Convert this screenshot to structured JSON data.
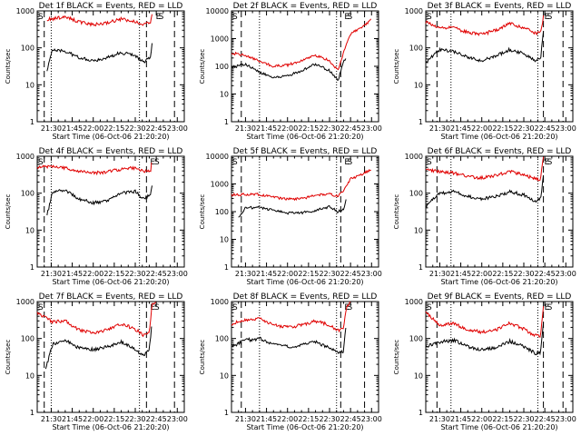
{
  "colors": {
    "events": "#000000",
    "lld": "#e00000",
    "axes": "#000000",
    "background": "#ffffff"
  },
  "chart_data": [
    {
      "type": "line",
      "title": "Det 1f BLACK = Events, RED = LLD",
      "xlabel": "Start Time (06-Oct-06 21:20:20)",
      "ylabel": "Counts/sec",
      "xlim": [
        "21:20",
        "23:05"
      ],
      "ylim": [
        1,
        1000
      ],
      "yscale": "log",
      "xticks": [
        "21:30",
        "21:45",
        "22:00",
        "22:15",
        "22:30",
        "22:45",
        "23:00"
      ],
      "yticks": [
        "1",
        "10",
        "100",
        "1000"
      ],
      "markers": [
        {
          "label": "S",
          "time": "21:20"
        },
        {
          "label": "E",
          "time": "22:44"
        },
        {
          "label": "S",
          "time": "22:46"
        }
      ],
      "dashed_lines": [
        "21:25",
        "22:38",
        "22:58"
      ],
      "dotted_lines": [
        "21:30",
        "22:33"
      ],
      "series": [
        {
          "name": "Events",
          "x": [
            "21:27",
            "21:31",
            "21:40",
            "21:50",
            "22:00",
            "22:10",
            "22:20",
            "22:30",
            "22:36",
            "22:41",
            "22:42"
          ],
          "y": [
            25,
            90,
            80,
            55,
            45,
            55,
            75,
            60,
            40,
            60,
            130
          ]
        },
        {
          "name": "LLD",
          "x": [
            "21:27",
            "21:31",
            "21:40",
            "21:50",
            "22:00",
            "22:10",
            "22:20",
            "22:30",
            "22:36",
            "22:41",
            "22:42"
          ],
          "y": [
            600,
            600,
            700,
            500,
            420,
            480,
            600,
            520,
            420,
            500,
            800
          ]
        }
      ]
    },
    {
      "type": "line",
      "title": "Det 2f BLACK = Events, RED = LLD",
      "xlabel": "Start Time (06-Oct-06 21:20:20)",
      "ylabel": "Counts/sec",
      "xlim": [
        "21:20",
        "23:05"
      ],
      "ylim": [
        1,
        10000
      ],
      "yscale": "log",
      "xticks": [
        "21:30",
        "21:45",
        "22:00",
        "22:15",
        "22:30",
        "22:45",
        "23:00"
      ],
      "yticks": [
        "1",
        "10",
        "100",
        "1000",
        "10000"
      ],
      "markers": [
        {
          "label": "S",
          "time": "21:20"
        },
        {
          "label": "E",
          "time": "22:40"
        },
        {
          "label": "S",
          "time": "22:42"
        }
      ],
      "dashed_lines": [
        "21:27",
        "22:38",
        "22:55"
      ],
      "dotted_lines": [
        "21:40",
        "22:35"
      ],
      "series": [
        {
          "name": "Events",
          "x": [
            "21:20",
            "21:30",
            "21:40",
            "21:50",
            "22:00",
            "22:10",
            "22:20",
            "22:30",
            "22:36",
            "22:40",
            "22:42"
          ],
          "y": [
            90,
            120,
            60,
            40,
            45,
            70,
            120,
            70,
            30,
            150,
            200
          ]
        },
        {
          "name": "LLD",
          "x": [
            "21:20",
            "21:30",
            "21:40",
            "21:50",
            "22:00",
            "22:10",
            "22:20",
            "22:30",
            "22:36",
            "22:40",
            "22:45",
            "22:55",
            "23:00"
          ],
          "y": [
            300,
            250,
            150,
            100,
            110,
            160,
            250,
            160,
            70,
            300,
            1500,
            3000,
            5000
          ]
        }
      ]
    },
    {
      "type": "line",
      "title": "Det 3f BLACK = Events, RED = LLD",
      "xlabel": "Start Time (06-Oct-06 21:20:20)",
      "ylabel": "Counts/sec",
      "xlim": [
        "21:20",
        "23:05"
      ],
      "ylim": [
        1,
        1000
      ],
      "yscale": "log",
      "xticks": [
        "21:30",
        "21:45",
        "22:00",
        "22:15",
        "22:30",
        "22:45",
        "23:00"
      ],
      "yticks": [
        "1",
        "10",
        "100",
        "1000"
      ],
      "markers": [
        {
          "label": "S",
          "time": "21:20"
        },
        {
          "label": "E",
          "time": "22:44"
        },
        {
          "label": "S",
          "time": "22:46"
        }
      ],
      "dashed_lines": [
        "21:28",
        "22:44",
        "22:58"
      ],
      "dotted_lines": [
        "21:38",
        "22:40"
      ],
      "series": [
        {
          "name": "Events",
          "x": [
            "21:20",
            "21:30",
            "21:40",
            "21:50",
            "22:00",
            "22:10",
            "22:20",
            "22:30",
            "22:38",
            "22:42",
            "22:44"
          ],
          "y": [
            40,
            90,
            80,
            55,
            45,
            60,
            90,
            70,
            45,
            50,
            300
          ]
        },
        {
          "name": "LLD",
          "x": [
            "21:20",
            "21:30",
            "21:40",
            "21:50",
            "22:00",
            "22:10",
            "22:20",
            "22:30",
            "22:38",
            "22:42",
            "22:44"
          ],
          "y": [
            500,
            350,
            350,
            260,
            230,
            300,
            450,
            350,
            250,
            260,
            700
          ]
        }
      ]
    },
    {
      "type": "line",
      "title": "Det 4f BLACK = Events, RED = LLD",
      "xlabel": "Start Time (06-Oct-06 21:20:20)",
      "ylabel": "Counts/sec",
      "xlim": [
        "21:20",
        "23:05"
      ],
      "ylim": [
        1,
        1000
      ],
      "yscale": "log",
      "xticks": [
        "21:30",
        "21:45",
        "22:00",
        "22:15",
        "22:30",
        "22:45",
        "23:00"
      ],
      "yticks": [
        "1",
        "10",
        "100",
        "1000"
      ],
      "markers": [
        {
          "label": "S",
          "time": "21:20"
        },
        {
          "label": "E",
          "time": "22:40"
        },
        {
          "label": "S",
          "time": "22:43"
        }
      ],
      "dashed_lines": [
        "21:25",
        "22:38",
        "22:58"
      ],
      "dotted_lines": [
        "21:30",
        "22:33"
      ],
      "series": [
        {
          "name": "Events",
          "x": [
            "21:27",
            "21:31",
            "21:40",
            "21:50",
            "22:00",
            "22:10",
            "22:20",
            "22:30",
            "22:36",
            "22:41",
            "22:42"
          ],
          "y": [
            25,
            110,
            120,
            70,
            55,
            60,
            100,
            110,
            70,
            90,
            170
          ]
        },
        {
          "name": "LLD",
          "x": [
            "21:20",
            "21:31",
            "21:40",
            "21:50",
            "22:00",
            "22:10",
            "22:20",
            "22:30",
            "22:36",
            "22:41",
            "22:42"
          ],
          "y": [
            500,
            520,
            480,
            380,
            350,
            380,
            450,
            480,
            380,
            420,
            1000
          ]
        }
      ]
    },
    {
      "type": "line",
      "title": "Det 5f BLACK = Events, RED = LLD",
      "xlabel": "Start Time (06-Oct-06 21:20:20)",
      "ylabel": "Counts/sec",
      "xlim": [
        "21:20",
        "23:05"
      ],
      "ylim": [
        1,
        10000
      ],
      "yscale": "log",
      "xticks": [
        "21:30",
        "21:45",
        "22:00",
        "22:15",
        "22:30",
        "22:45",
        "23:00"
      ],
      "yticks": [
        "1",
        "10",
        "100",
        "1000",
        "10000"
      ],
      "markers": [
        {
          "label": "S",
          "time": "21:20"
        },
        {
          "label": "E",
          "time": "22:40"
        },
        {
          "label": "S",
          "time": "22:42"
        }
      ],
      "dashed_lines": [
        "21:27",
        "22:38",
        "22:55"
      ],
      "dotted_lines": [
        "21:40",
        "22:35"
      ],
      "series": [
        {
          "name": "Events",
          "x": [
            "21:25",
            "21:30",
            "21:40",
            "21:50",
            "22:00",
            "22:10",
            "22:20",
            "22:30",
            "22:36",
            "22:40",
            "22:42"
          ],
          "y": [
            60,
            140,
            140,
            110,
            90,
            90,
            110,
            150,
            100,
            120,
            300
          ]
        },
        {
          "name": "LLD",
          "x": [
            "21:20",
            "21:30",
            "21:40",
            "21:50",
            "22:00",
            "22:10",
            "22:20",
            "22:30",
            "22:36",
            "22:40",
            "22:45",
            "22:55",
            "23:00"
          ],
          "y": [
            400,
            420,
            420,
            330,
            280,
            300,
            380,
            450,
            350,
            600,
            1500,
            2500,
            3500
          ]
        }
      ]
    },
    {
      "type": "line",
      "title": "Det 6f BLACK = Events, RED = LLD",
      "xlabel": "Start Time (06-Oct-06 21:20:20)",
      "ylabel": "Counts/sec",
      "xlim": [
        "21:20",
        "23:05"
      ],
      "ylim": [
        1,
        1000
      ],
      "yscale": "log",
      "xticks": [
        "21:30",
        "21:45",
        "22:00",
        "22:15",
        "22:30",
        "22:45",
        "23:00"
      ],
      "yticks": [
        "1",
        "10",
        "100",
        "1000"
      ],
      "markers": [
        {
          "label": "S",
          "time": "21:20"
        },
        {
          "label": "E",
          "time": "22:44"
        },
        {
          "label": "S",
          "time": "22:46"
        }
      ],
      "dashed_lines": [
        "21:28",
        "22:44",
        "22:58"
      ],
      "dotted_lines": [
        "21:38",
        "22:40"
      ],
      "series": [
        {
          "name": "Events",
          "x": [
            "21:20",
            "21:30",
            "21:40",
            "21:50",
            "22:00",
            "22:10",
            "22:20",
            "22:30",
            "22:38",
            "22:42",
            "22:44"
          ],
          "y": [
            45,
            100,
            110,
            80,
            70,
            80,
            110,
            90,
            60,
            70,
            300
          ]
        },
        {
          "name": "LLD",
          "x": [
            "21:20",
            "21:30",
            "21:40",
            "21:50",
            "22:00",
            "22:10",
            "22:20",
            "22:30",
            "22:38",
            "22:42",
            "22:44"
          ],
          "y": [
            450,
            380,
            350,
            280,
            260,
            300,
            380,
            320,
            240,
            230,
            1000
          ]
        }
      ]
    },
    {
      "type": "line",
      "title": "Det 7f BLACK = Events, RED = LLD",
      "xlabel": "Start Time (06-Oct-06 21:20:20)",
      "ylabel": "Counts/sec",
      "xlim": [
        "21:20",
        "23:05"
      ],
      "ylim": [
        1,
        1000
      ],
      "yscale": "log",
      "xticks": [
        "21:30",
        "21:45",
        "22:00",
        "22:15",
        "22:30",
        "22:45",
        "23:00"
      ],
      "yticks": [
        "1",
        "10",
        "100",
        "1000"
      ],
      "markers": [
        {
          "label": "S",
          "time": "21:20"
        },
        {
          "label": "E",
          "time": "22:40"
        },
        {
          "label": "S",
          "time": "22:43"
        }
      ],
      "dashed_lines": [
        "21:25",
        "22:38",
        "22:58"
      ],
      "dotted_lines": [
        "21:30",
        "22:33"
      ],
      "series": [
        {
          "name": "Events",
          "x": [
            "21:26",
            "21:31",
            "21:40",
            "21:50",
            "22:00",
            "22:10",
            "22:20",
            "22:30",
            "22:36",
            "22:40",
            "22:42"
          ],
          "y": [
            15,
            70,
            90,
            55,
            50,
            60,
            80,
            50,
            35,
            50,
            300
          ]
        },
        {
          "name": "LLD",
          "x": [
            "21:20",
            "21:31",
            "21:40",
            "21:50",
            "22:00",
            "22:10",
            "22:20",
            "22:30",
            "22:36",
            "22:40",
            "22:42",
            "22:45"
          ],
          "y": [
            500,
            280,
            300,
            170,
            140,
            170,
            250,
            180,
            120,
            140,
            800,
            1000
          ]
        }
      ]
    },
    {
      "type": "line",
      "title": "Det 8f BLACK = Events, RED = LLD",
      "xlabel": "Start Time (06-Oct-06 21:20:20)",
      "ylabel": "Counts/sec",
      "xlim": [
        "21:20",
        "23:05"
      ],
      "ylim": [
        1,
        1000
      ],
      "yscale": "log",
      "xticks": [
        "21:30",
        "21:45",
        "22:00",
        "22:15",
        "22:30",
        "22:45",
        "23:00"
      ],
      "yticks": [
        "1",
        "10",
        "100",
        "1000"
      ],
      "markers": [
        {
          "label": "S",
          "time": "21:20"
        },
        {
          "label": "E",
          "time": "22:40"
        },
        {
          "label": "S",
          "time": "22:42"
        }
      ],
      "dashed_lines": [
        "21:27",
        "22:38",
        "22:55"
      ],
      "dotted_lines": [
        "21:40",
        "22:35"
      ],
      "series": [
        {
          "name": "Events",
          "x": [
            "21:20",
            "21:30",
            "21:40",
            "21:50",
            "22:00",
            "22:10",
            "22:20",
            "22:30",
            "22:36",
            "22:40",
            "22:42"
          ],
          "y": [
            60,
            90,
            100,
            70,
            60,
            65,
            80,
            55,
            40,
            45,
            300
          ]
        },
        {
          "name": "LLD",
          "x": [
            "21:20",
            "21:30",
            "21:40",
            "21:50",
            "22:00",
            "22:10",
            "22:20",
            "22:30",
            "22:36",
            "22:40",
            "22:42",
            "22:45"
          ],
          "y": [
            250,
            320,
            350,
            230,
            200,
            230,
            300,
            230,
            170,
            180,
            700,
            1000
          ]
        }
      ]
    },
    {
      "type": "line",
      "title": "Det 9f BLACK = Events, RED = LLD",
      "xlabel": "Start Time (06-Oct-06 21:20:20)",
      "ylabel": "Counts/sec",
      "xlim": [
        "21:20",
        "23:05"
      ],
      "ylim": [
        1,
        1000
      ],
      "yscale": "log",
      "xticks": [
        "21:30",
        "21:45",
        "22:00",
        "22:15",
        "22:30",
        "22:45",
        "23:00"
      ],
      "yticks": [
        "1",
        "10",
        "100",
        "1000"
      ],
      "markers": [
        {
          "label": "S",
          "time": "21:20"
        },
        {
          "label": "E",
          "time": "22:44"
        },
        {
          "label": "S",
          "time": "22:46"
        }
      ],
      "dashed_lines": [
        "21:28",
        "22:44",
        "22:58"
      ],
      "dotted_lines": [
        "21:38",
        "22:40"
      ],
      "series": [
        {
          "name": "Events",
          "x": [
            "21:20",
            "21:30",
            "21:40",
            "21:50",
            "22:00",
            "22:10",
            "22:20",
            "22:30",
            "22:38",
            "22:42",
            "22:44"
          ],
          "y": [
            60,
            80,
            90,
            60,
            50,
            55,
            85,
            60,
            40,
            40,
            300
          ]
        },
        {
          "name": "LLD",
          "x": [
            "21:20",
            "21:30",
            "21:40",
            "21:50",
            "22:00",
            "22:10",
            "22:20",
            "22:30",
            "22:38",
            "22:42",
            "22:44"
          ],
          "y": [
            500,
            230,
            260,
            170,
            150,
            170,
            260,
            180,
            120,
            120,
            800
          ]
        }
      ]
    }
  ]
}
